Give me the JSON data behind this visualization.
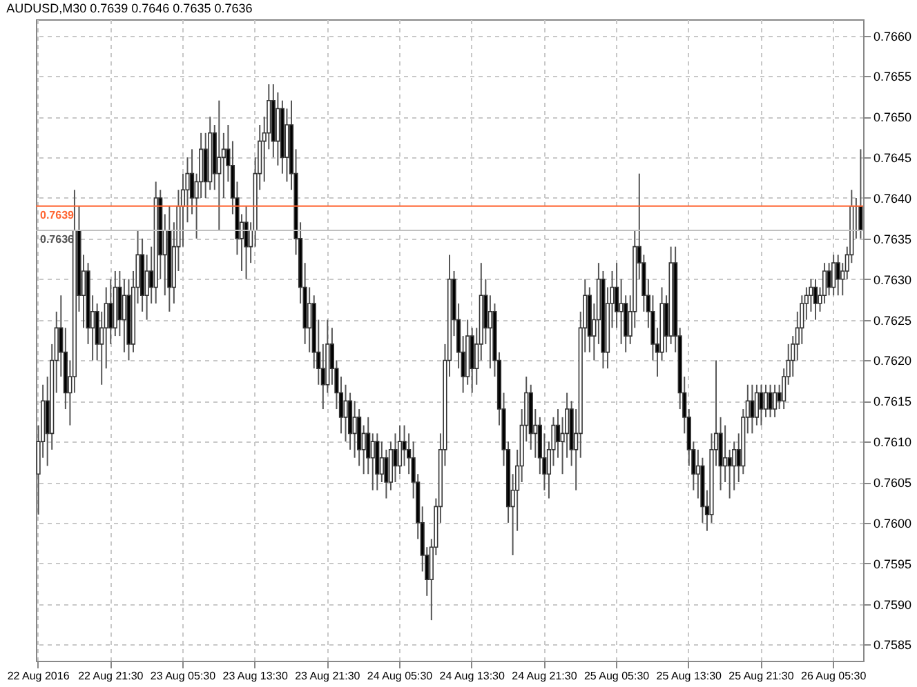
{
  "chart_data": {
    "type": "candlestick",
    "title": "AUDUSD,M30  0.7639 0.7646 0.7635 0.7636",
    "categories": [
      "22 Aug 2016",
      null,
      null,
      null,
      null,
      null,
      null,
      null,
      null,
      null,
      null,
      null,
      null,
      null,
      null,
      null,
      "22 Aug 21:30",
      null,
      null,
      null,
      null,
      null,
      null,
      null,
      null,
      null,
      null,
      null,
      null,
      null,
      null,
      null,
      "23 Aug 05:30",
      null,
      null,
      null,
      null,
      null,
      null,
      null,
      null,
      null,
      null,
      null,
      null,
      null,
      null,
      null,
      "23 Aug 13:30",
      null,
      null,
      null,
      null,
      null,
      null,
      null,
      null,
      null,
      null,
      null,
      null,
      null,
      null,
      null,
      "23 Aug 21:30",
      null,
      null,
      null,
      null,
      null,
      null,
      null,
      null,
      null,
      null,
      null,
      null,
      null,
      null,
      null,
      "24 Aug 05:30",
      null,
      null,
      null,
      null,
      null,
      null,
      null,
      null,
      null,
      null,
      null,
      null,
      null,
      null,
      null,
      "24 Aug 13:30",
      null,
      null,
      null,
      null,
      null,
      null,
      null,
      null,
      null,
      null,
      null,
      null,
      null,
      null,
      null,
      "24 Aug 21:30",
      null,
      null,
      null,
      null,
      null,
      null,
      null,
      null,
      null,
      null,
      null,
      null,
      null,
      null,
      null,
      "25 Aug 05:30",
      null,
      null,
      null,
      null,
      null,
      null,
      null,
      null,
      null,
      null,
      null,
      null,
      null,
      null,
      null,
      "25 Aug 13:30",
      null,
      null,
      null,
      null,
      null,
      null,
      null,
      null,
      null,
      null,
      null,
      null,
      null,
      null,
      null,
      "25 Aug 21:30",
      null,
      null,
      null,
      null,
      null,
      null,
      null,
      null,
      null,
      null,
      null,
      null,
      null,
      null,
      null,
      "26 Aug 05:30",
      null,
      null,
      null,
      null,
      null,
      null
    ],
    "ohlc": [
      [
        0.7606,
        0.7612,
        0.7601,
        0.761
      ],
      [
        0.761,
        0.7617,
        0.7608,
        0.7615
      ],
      [
        0.7615,
        0.7618,
        0.7607,
        0.7611
      ],
      [
        0.7611,
        0.7622,
        0.7609,
        0.762
      ],
      [
        0.762,
        0.7626,
        0.7616,
        0.7624
      ],
      [
        0.7624,
        0.7628,
        0.7618,
        0.7621
      ],
      [
        0.7621,
        0.7624,
        0.7614,
        0.7616
      ],
      [
        0.7616,
        0.762,
        0.7612,
        0.7618
      ],
      [
        0.7618,
        0.7641,
        0.7616,
        0.7636
      ],
      [
        0.7636,
        0.7639,
        0.7626,
        0.7628
      ],
      [
        0.7628,
        0.7633,
        0.7624,
        0.7631
      ],
      [
        0.7631,
        0.7632,
        0.7622,
        0.7624
      ],
      [
        0.7624,
        0.7628,
        0.762,
        0.7626
      ],
      [
        0.7626,
        0.7627,
        0.762,
        0.7622
      ],
      [
        0.7622,
        0.7626,
        0.7617,
        0.7624
      ],
      [
        0.7624,
        0.7629,
        0.7619,
        0.7627
      ],
      [
        0.7627,
        0.763,
        0.7622,
        0.7624
      ],
      [
        0.7624,
        0.7631,
        0.7623,
        0.7629
      ],
      [
        0.7629,
        0.7631,
        0.7623,
        0.7625
      ],
      [
        0.7625,
        0.763,
        0.7621,
        0.7628
      ],
      [
        0.7628,
        0.763,
        0.762,
        0.7622
      ],
      [
        0.7622,
        0.7631,
        0.7621,
        0.7629
      ],
      [
        0.7629,
        0.7636,
        0.7627,
        0.7633
      ],
      [
        0.7633,
        0.7635,
        0.7626,
        0.7628
      ],
      [
        0.7628,
        0.7633,
        0.7625,
        0.7631
      ],
      [
        0.7631,
        0.7634,
        0.7627,
        0.7629
      ],
      [
        0.7629,
        0.7642,
        0.7627,
        0.764
      ],
      [
        0.764,
        0.7641,
        0.763,
        0.7633
      ],
      [
        0.7633,
        0.7638,
        0.7628,
        0.7636
      ],
      [
        0.7636,
        0.7639,
        0.7626,
        0.7629
      ],
      [
        0.7629,
        0.7637,
        0.7627,
        0.7634
      ],
      [
        0.7634,
        0.7641,
        0.7631,
        0.7639
      ],
      [
        0.7639,
        0.7643,
        0.7634,
        0.7641
      ],
      [
        0.7641,
        0.7645,
        0.7637,
        0.7643
      ],
      [
        0.7643,
        0.7646,
        0.7638,
        0.764
      ],
      [
        0.764,
        0.7643,
        0.7635,
        0.7642
      ],
      [
        0.7642,
        0.7648,
        0.764,
        0.7646
      ],
      [
        0.7646,
        0.7648,
        0.764,
        0.7642
      ],
      [
        0.7642,
        0.765,
        0.7641,
        0.7648
      ],
      [
        0.7648,
        0.7649,
        0.7641,
        0.7643
      ],
      [
        0.7643,
        0.7652,
        0.7636,
        0.7645
      ],
      [
        0.7645,
        0.7648,
        0.764,
        0.7646
      ],
      [
        0.7646,
        0.7649,
        0.7642,
        0.7644
      ],
      [
        0.7644,
        0.7647,
        0.7638,
        0.764
      ],
      [
        0.764,
        0.7642,
        0.7633,
        0.7635
      ],
      [
        0.7635,
        0.7638,
        0.7631,
        0.7637
      ],
      [
        0.7637,
        0.7639,
        0.763,
        0.7634
      ],
      [
        0.7634,
        0.7637,
        0.7632,
        0.7636
      ],
      [
        0.7636,
        0.7645,
        0.7634,
        0.7643
      ],
      [
        0.7643,
        0.7649,
        0.7641,
        0.7647
      ],
      [
        0.7647,
        0.765,
        0.7642,
        0.7648
      ],
      [
        0.7648,
        0.7654,
        0.7646,
        0.7652
      ],
      [
        0.7652,
        0.7654,
        0.7645,
        0.7647
      ],
      [
        0.7647,
        0.7653,
        0.7644,
        0.7651
      ],
      [
        0.7651,
        0.7652,
        0.7643,
        0.7645
      ],
      [
        0.7645,
        0.7651,
        0.7642,
        0.7649
      ],
      [
        0.7649,
        0.7652,
        0.7641,
        0.7643
      ],
      [
        0.7643,
        0.7646,
        0.7633,
        0.7635
      ],
      [
        0.7635,
        0.7637,
        0.7627,
        0.7629
      ],
      [
        0.7629,
        0.7632,
        0.7622,
        0.7624
      ],
      [
        0.7624,
        0.7629,
        0.7621,
        0.7627
      ],
      [
        0.7627,
        0.7628,
        0.7619,
        0.7621
      ],
      [
        0.7621,
        0.7625,
        0.7617,
        0.7619
      ],
      [
        0.7619,
        0.7622,
        0.7614,
        0.7617
      ],
      [
        0.7617,
        0.7625,
        0.7616,
        0.7622
      ],
      [
        0.7622,
        0.7624,
        0.7617,
        0.7619
      ],
      [
        0.7619,
        0.762,
        0.7614,
        0.7616
      ],
      [
        0.7616,
        0.7618,
        0.7611,
        0.7613
      ],
      [
        0.7613,
        0.7617,
        0.761,
        0.7615
      ],
      [
        0.7615,
        0.7616,
        0.7609,
        0.7611
      ],
      [
        0.7611,
        0.7615,
        0.7608,
        0.7613
      ],
      [
        0.7613,
        0.7614,
        0.7607,
        0.7609
      ],
      [
        0.7609,
        0.7612,
        0.7606,
        0.7611
      ],
      [
        0.7611,
        0.7613,
        0.7606,
        0.7608
      ],
      [
        0.7608,
        0.7611,
        0.7604,
        0.761
      ],
      [
        0.761,
        0.7611,
        0.7604,
        0.7606
      ],
      [
        0.7606,
        0.761,
        0.7605,
        0.7608
      ],
      [
        0.7608,
        0.7609,
        0.7603,
        0.7605
      ],
      [
        0.7605,
        0.761,
        0.7604,
        0.7609
      ],
      [
        0.7609,
        0.7611,
        0.7605,
        0.7607
      ],
      [
        0.7607,
        0.7612,
        0.7606,
        0.761
      ],
      [
        0.761,
        0.7612,
        0.7607,
        0.7609
      ],
      [
        0.7609,
        0.7611,
        0.7606,
        0.7608
      ],
      [
        0.7608,
        0.761,
        0.7603,
        0.7605
      ],
      [
        0.7605,
        0.7606,
        0.7598,
        0.76
      ],
      [
        0.76,
        0.7602,
        0.7594,
        0.7596
      ],
      [
        0.7596,
        0.7597,
        0.7591,
        0.7593
      ],
      [
        0.7593,
        0.7598,
        0.7588,
        0.7597
      ],
      [
        0.7597,
        0.7603,
        0.7596,
        0.7602
      ],
      [
        0.7602,
        0.7611,
        0.76,
        0.7609
      ],
      [
        0.7609,
        0.7622,
        0.7607,
        0.762
      ],
      [
        0.762,
        0.7633,
        0.7618,
        0.763
      ],
      [
        0.763,
        0.7631,
        0.7623,
        0.7625
      ],
      [
        0.7625,
        0.7627,
        0.7619,
        0.7621
      ],
      [
        0.7621,
        0.7623,
        0.7616,
        0.7618
      ],
      [
        0.7618,
        0.7625,
        0.7617,
        0.7623
      ],
      [
        0.7623,
        0.7624,
        0.7616,
        0.7619
      ],
      [
        0.7619,
        0.7624,
        0.7617,
        0.7622
      ],
      [
        0.7622,
        0.7632,
        0.762,
        0.7628
      ],
      [
        0.7628,
        0.763,
        0.7622,
        0.7624
      ],
      [
        0.7624,
        0.7628,
        0.7619,
        0.7626
      ],
      [
        0.7626,
        0.7627,
        0.7618,
        0.762
      ],
      [
        0.762,
        0.7621,
        0.7612,
        0.7614
      ],
      [
        0.7614,
        0.7616,
        0.7607,
        0.7609
      ],
      [
        0.7609,
        0.761,
        0.76,
        0.7602
      ],
      [
        0.7602,
        0.7606,
        0.7596,
        0.7604
      ],
      [
        0.7604,
        0.7609,
        0.7599,
        0.7607
      ],
      [
        0.7607,
        0.7614,
        0.7605,
        0.7612
      ],
      [
        0.7612,
        0.7618,
        0.761,
        0.7616
      ],
      [
        0.7616,
        0.7617,
        0.7609,
        0.7611
      ],
      [
        0.7611,
        0.7614,
        0.7608,
        0.7612
      ],
      [
        0.7612,
        0.7613,
        0.7606,
        0.7608
      ],
      [
        0.7608,
        0.7611,
        0.7604,
        0.7606
      ],
      [
        0.7606,
        0.761,
        0.7603,
        0.7609
      ],
      [
        0.7609,
        0.7613,
        0.7607,
        0.7612
      ],
      [
        0.7612,
        0.7614,
        0.7608,
        0.761
      ],
      [
        0.761,
        0.7613,
        0.7606,
        0.7611
      ],
      [
        0.7611,
        0.7616,
        0.7608,
        0.7614
      ],
      [
        0.7614,
        0.7615,
        0.7607,
        0.7609
      ],
      [
        0.7609,
        0.7614,
        0.7604,
        0.7611
      ],
      [
        0.7611,
        0.7626,
        0.7608,
        0.7624
      ],
      [
        0.7624,
        0.763,
        0.7621,
        0.7628
      ],
      [
        0.7628,
        0.7629,
        0.7621,
        0.7623
      ],
      [
        0.7623,
        0.7627,
        0.762,
        0.7625
      ],
      [
        0.7625,
        0.7632,
        0.7622,
        0.763
      ],
      [
        0.763,
        0.7631,
        0.7619,
        0.7621
      ],
      [
        0.7621,
        0.7629,
        0.7619,
        0.7627
      ],
      [
        0.7627,
        0.7631,
        0.7624,
        0.7629
      ],
      [
        0.7629,
        0.7632,
        0.7624,
        0.7626
      ],
      [
        0.7626,
        0.763,
        0.7622,
        0.7627
      ],
      [
        0.7627,
        0.7628,
        0.7621,
        0.7623
      ],
      [
        0.7623,
        0.7628,
        0.7622,
        0.7626
      ],
      [
        0.7626,
        0.7636,
        0.7624,
        0.7634
      ],
      [
        0.7634,
        0.7643,
        0.763,
        0.7632
      ],
      [
        0.7632,
        0.7633,
        0.7626,
        0.7628
      ],
      [
        0.7628,
        0.763,
        0.7624,
        0.7626
      ],
      [
        0.7626,
        0.7628,
        0.762,
        0.7622
      ],
      [
        0.7622,
        0.7624,
        0.7618,
        0.7621
      ],
      [
        0.7621,
        0.7629,
        0.762,
        0.7627
      ],
      [
        0.7627,
        0.7628,
        0.7621,
        0.7623
      ],
      [
        0.7623,
        0.7634,
        0.7622,
        0.7632
      ],
      [
        0.7632,
        0.7634,
        0.7621,
        0.7623
      ],
      [
        0.7623,
        0.7624,
        0.7614,
        0.7616
      ],
      [
        0.7616,
        0.7618,
        0.7611,
        0.7613
      ],
      [
        0.7613,
        0.7614,
        0.7607,
        0.7609
      ],
      [
        0.7609,
        0.761,
        0.7604,
        0.7606
      ],
      [
        0.7606,
        0.7609,
        0.7603,
        0.7607
      ],
      [
        0.7607,
        0.7608,
        0.76,
        0.7602
      ],
      [
        0.7602,
        0.7604,
        0.7599,
        0.7601
      ],
      [
        0.7601,
        0.7611,
        0.76,
        0.7609
      ],
      [
        0.7609,
        0.762,
        0.7607,
        0.7611
      ],
      [
        0.7611,
        0.7613,
        0.7604,
        0.7607
      ],
      [
        0.7607,
        0.7612,
        0.7605,
        0.7608
      ],
      [
        0.7608,
        0.7609,
        0.7603,
        0.7607
      ],
      [
        0.7607,
        0.761,
        0.7604,
        0.7609
      ],
      [
        0.7609,
        0.7611,
        0.7605,
        0.7607
      ],
      [
        0.7607,
        0.7614,
        0.7606,
        0.7613
      ],
      [
        0.7613,
        0.7617,
        0.7611,
        0.7615
      ],
      [
        0.7615,
        0.7617,
        0.7611,
        0.7613
      ],
      [
        0.7613,
        0.7617,
        0.7612,
        0.7616
      ],
      [
        0.7616,
        0.7617,
        0.7612,
        0.7614
      ],
      [
        0.7614,
        0.7617,
        0.7613,
        0.7616
      ],
      [
        0.7616,
        0.7617,
        0.7613,
        0.7614
      ],
      [
        0.7614,
        0.7617,
        0.7613,
        0.7616
      ],
      [
        0.7616,
        0.7617,
        0.7614,
        0.7615
      ],
      [
        0.7615,
        0.7619,
        0.7614,
        0.7618
      ],
      [
        0.7618,
        0.7622,
        0.7617,
        0.762
      ],
      [
        0.762,
        0.7623,
        0.7618,
        0.7622
      ],
      [
        0.7622,
        0.7626,
        0.762,
        0.7624
      ],
      [
        0.7624,
        0.7628,
        0.7622,
        0.7627
      ],
      [
        0.7627,
        0.7629,
        0.7625,
        0.7628
      ],
      [
        0.7628,
        0.763,
        0.7626,
        0.7629
      ],
      [
        0.7629,
        0.763,
        0.7625,
        0.7627
      ],
      [
        0.7627,
        0.7629,
        0.7626,
        0.7628
      ],
      [
        0.7628,
        0.7632,
        0.7627,
        0.7631
      ],
      [
        0.7631,
        0.7632,
        0.7628,
        0.7629
      ],
      [
        0.7629,
        0.7633,
        0.7628,
        0.7632
      ],
      [
        0.7632,
        0.7633,
        0.7628,
        0.763
      ],
      [
        0.763,
        0.7632,
        0.7628,
        0.7631
      ],
      [
        0.7631,
        0.7634,
        0.763,
        0.7633
      ],
      [
        0.7633,
        0.7641,
        0.7632,
        0.7639
      ],
      [
        0.7639,
        0.764,
        0.7635,
        0.7639
      ],
      [
        0.7639,
        0.7646,
        0.7635,
        0.7636
      ]
    ],
    "ylim": [
      0.7583,
      0.7662
    ],
    "yticks": [
      0.7585,
      {
        "value": 0.759,
        "label": "0.7590"
      },
      0.7595,
      {
        "value": 0.76,
        "label": "0.7600"
      },
      0.7605,
      {
        "value": 0.761,
        "label": "0.7610"
      },
      0.7615,
      {
        "value": 0.762,
        "label": "0.7620"
      },
      0.7625,
      {
        "value": 0.763,
        "label": "0.7630"
      },
      0.7635,
      {
        "value": 0.764,
        "label": "0.7640"
      },
      0.7645,
      {
        "value": 0.765,
        "label": "0.7650"
      },
      0.7655,
      {
        "value": 0.766,
        "label": "0.7660"
      }
    ],
    "grid": true,
    "ref_lines": [
      {
        "axis": "y",
        "value": 0.7639,
        "label": "0.7639",
        "color": "#ff6633"
      },
      {
        "axis": "y",
        "value": 0.7636,
        "label": "0.7636",
        "color": "#c0c0c0"
      }
    ]
  }
}
